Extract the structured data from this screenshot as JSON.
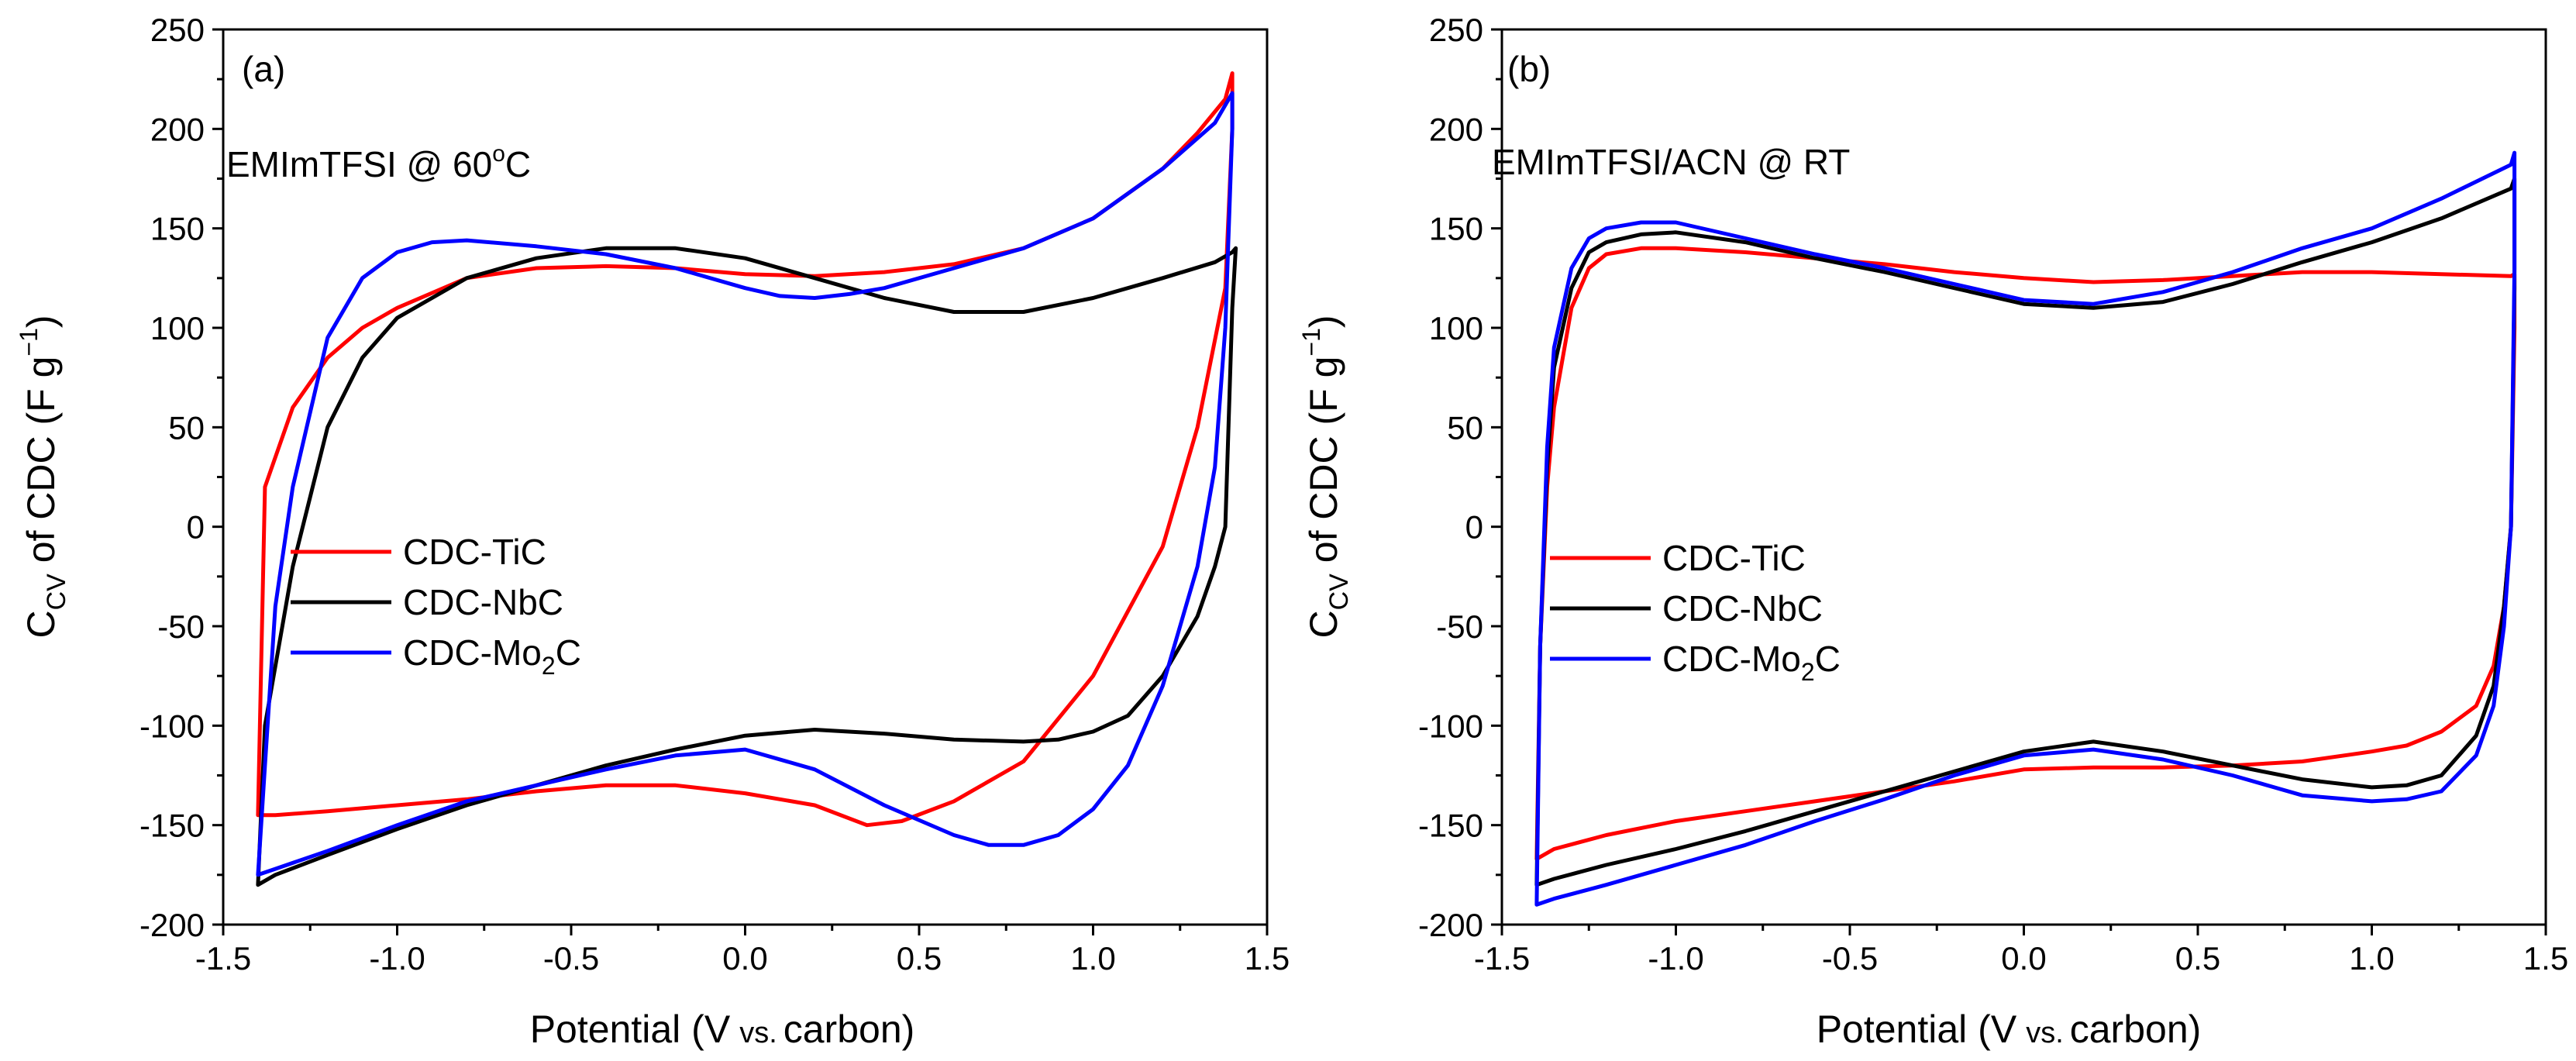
{
  "colors": {
    "CDC-TiC": "#ff0000",
    "CDC-NbC": "#000000",
    "CDC-Mo2C": "#0000ff"
  },
  "chart_data": [
    {
      "type": "line",
      "panel_label": "(a)",
      "annotation": "EMImTFSI @ 60",
      "annotation_sup": "o",
      "annotation_suffix": "C",
      "xlabel_main": "Potential (V",
      "xlabel_small": "vs.",
      "xlabel_end": "carbon)",
      "ylabel_c": "C",
      "ylabel_sub": "CV",
      "ylabel_mid": " of CDC (F g",
      "ylabel_sup": "−1",
      "ylabel_end": ")",
      "xlim": [
        -1.5,
        1.5
      ],
      "ylim": [
        -200,
        250
      ],
      "xticks": [
        "-1.5",
        "-1.0",
        "-0.5",
        "0.0",
        "0.5",
        "1.0",
        "1.5"
      ],
      "yticks": [
        "-200",
        "-150",
        "-100",
        "-50",
        "0",
        "50",
        "100",
        "150",
        "200",
        "250"
      ],
      "legend": {
        "position": "left",
        "entries": [
          "CDC-TiC",
          "CDC-NbC",
          "CDC-Mo2C"
        ]
      },
      "series": [
        {
          "name": "CDC-TiC",
          "x": [
            -1.4,
            -1.38,
            -1.3,
            -1.2,
            -1.1,
            -1.0,
            -0.8,
            -0.6,
            -0.4,
            -0.2,
            0.0,
            0.2,
            0.4,
            0.6,
            0.8,
            1.0,
            1.2,
            1.3,
            1.38,
            1.4,
            1.4,
            1.38,
            1.3,
            1.2,
            1.0,
            0.8,
            0.6,
            0.45,
            0.35,
            0.2,
            0.0,
            -0.2,
            -0.4,
            -0.6,
            -0.8,
            -1.0,
            -1.2,
            -1.35,
            -1.4,
            -1.4
          ],
          "y": [
            -145,
            20,
            60,
            85,
            100,
            110,
            125,
            130,
            131,
            130,
            127,
            126,
            128,
            132,
            140,
            155,
            180,
            198,
            215,
            228,
            200,
            120,
            50,
            -10,
            -75,
            -118,
            -138,
            -148,
            -150,
            -140,
            -134,
            -130,
            -130,
            -133,
            -137,
            -140,
            -143,
            -145,
            -145,
            -145
          ]
        },
        {
          "name": "CDC-NbC",
          "x": [
            -1.4,
            -1.38,
            -1.3,
            -1.2,
            -1.1,
            -1.0,
            -0.8,
            -0.6,
            -0.4,
            -0.2,
            0.0,
            0.2,
            0.4,
            0.6,
            0.8,
            1.0,
            1.2,
            1.35,
            1.4,
            1.41,
            1.4,
            1.38,
            1.35,
            1.3,
            1.2,
            1.1,
            1.0,
            0.9,
            0.8,
            0.6,
            0.4,
            0.2,
            0.0,
            -0.2,
            -0.4,
            -0.6,
            -0.8,
            -1.0,
            -1.2,
            -1.35,
            -1.4
          ],
          "y": [
            -180,
            -100,
            -20,
            50,
            85,
            105,
            125,
            135,
            140,
            140,
            135,
            125,
            115,
            108,
            108,
            115,
            125,
            133,
            138,
            140,
            110,
            0,
            -20,
            -45,
            -75,
            -95,
            -103,
            -107,
            -108,
            -107,
            -104,
            -102,
            -105,
            -112,
            -120,
            -130,
            -140,
            -152,
            -165,
            -175,
            -180
          ]
        },
        {
          "name": "CDC-Mo2C",
          "x": [
            -1.4,
            -1.38,
            -1.35,
            -1.3,
            -1.2,
            -1.1,
            -1.0,
            -0.9,
            -0.8,
            -0.6,
            -0.4,
            -0.2,
            0.0,
            0.1,
            0.2,
            0.3,
            0.4,
            0.6,
            0.8,
            1.0,
            1.2,
            1.35,
            1.4,
            1.4,
            1.38,
            1.35,
            1.3,
            1.2,
            1.1,
            1.0,
            0.9,
            0.8,
            0.7,
            0.6,
            0.4,
            0.2,
            0.0,
            -0.2,
            -0.4,
            -0.6,
            -0.8,
            -1.0,
            -1.2,
            -1.35,
            -1.4
          ],
          "y": [
            -175,
            -120,
            -40,
            20,
            95,
            125,
            138,
            143,
            144,
            141,
            137,
            130,
            120,
            116,
            115,
            117,
            120,
            130,
            140,
            155,
            180,
            203,
            218,
            200,
            100,
            30,
            -20,
            -80,
            -120,
            -142,
            -155,
            -160,
            -160,
            -155,
            -140,
            -122,
            -112,
            -115,
            -122,
            -130,
            -138,
            -150,
            -163,
            -172,
            -175
          ]
        }
      ]
    },
    {
      "type": "line",
      "panel_label": "(b)",
      "annotation": "EMImTFSI/ACN @ RT",
      "annotation_sup": "",
      "annotation_suffix": "",
      "xlabel_main": "Potential (V",
      "xlabel_small": "vs.",
      "xlabel_end": "carbon)",
      "ylabel_c": "C",
      "ylabel_sub": "CV",
      "ylabel_mid": " of CDC (F g",
      "ylabel_sup": "−1",
      "ylabel_end": ")",
      "xlim": [
        -1.5,
        1.5
      ],
      "ylim": [
        -200,
        250
      ],
      "xticks": [
        "-1.5",
        "-1.0",
        "-0.5",
        "0.0",
        "0.5",
        "1.0",
        "1.5"
      ],
      "yticks": [
        "-200",
        "-150",
        "-100",
        "-50",
        "0",
        "50",
        "100",
        "150",
        "200",
        "250"
      ],
      "legend": {
        "position": "left",
        "entries": [
          "CDC-TiC",
          "CDC-NbC",
          "CDC-Mo2C"
        ]
      },
      "series": [
        {
          "name": "CDC-TiC",
          "x": [
            -1.4,
            -1.39,
            -1.37,
            -1.35,
            -1.3,
            -1.25,
            -1.2,
            -1.1,
            -1.0,
            -0.8,
            -0.6,
            -0.4,
            -0.2,
            0.0,
            0.2,
            0.4,
            0.6,
            0.8,
            1.0,
            1.2,
            1.4,
            1.41,
            1.41,
            1.4,
            1.38,
            1.35,
            1.3,
            1.2,
            1.1,
            1.0,
            0.8,
            0.6,
            0.4,
            0.2,
            0.0,
            -0.2,
            -0.4,
            -0.6,
            -0.8,
            -1.0,
            -1.2,
            -1.35,
            -1.4
          ],
          "y": [
            -167,
            -60,
            20,
            60,
            110,
            130,
            137,
            140,
            140,
            138,
            135,
            132,
            128,
            125,
            123,
            124,
            126,
            128,
            128,
            127,
            126,
            127,
            100,
            0,
            -40,
            -70,
            -90,
            -103,
            -110,
            -113,
            -118,
            -120,
            -121,
            -121,
            -122,
            -128,
            -133,
            -138,
            -143,
            -148,
            -155,
            -162,
            -167
          ]
        },
        {
          "name": "CDC-NbC",
          "x": [
            -1.4,
            -1.39,
            -1.37,
            -1.35,
            -1.3,
            -1.25,
            -1.2,
            -1.1,
            -1.0,
            -0.8,
            -0.6,
            -0.4,
            -0.2,
            0.0,
            0.2,
            0.4,
            0.6,
            0.8,
            1.0,
            1.2,
            1.4,
            1.41,
            1.41,
            1.4,
            1.38,
            1.35,
            1.3,
            1.2,
            1.1,
            1.0,
            0.8,
            0.6,
            0.4,
            0.2,
            0.0,
            -0.2,
            -0.4,
            -0.6,
            -0.8,
            -1.0,
            -1.2,
            -1.35,
            -1.4
          ],
          "y": [
            -180,
            -60,
            30,
            80,
            120,
            138,
            143,
            147,
            148,
            143,
            135,
            128,
            120,
            112,
            110,
            113,
            122,
            133,
            143,
            155,
            170,
            175,
            120,
            0,
            -40,
            -80,
            -105,
            -125,
            -130,
            -131,
            -127,
            -120,
            -113,
            -108,
            -113,
            -123,
            -133,
            -143,
            -153,
            -162,
            -170,
            -177,
            -180
          ]
        },
        {
          "name": "CDC-Mo2C",
          "x": [
            -1.4,
            -1.39,
            -1.37,
            -1.35,
            -1.3,
            -1.25,
            -1.2,
            -1.1,
            -1.0,
            -0.8,
            -0.6,
            -0.4,
            -0.2,
            0.0,
            0.2,
            0.4,
            0.6,
            0.8,
            1.0,
            1.2,
            1.4,
            1.41,
            1.41,
            1.4,
            1.38,
            1.35,
            1.3,
            1.2,
            1.1,
            1.0,
            0.8,
            0.6,
            0.4,
            0.2,
            0.0,
            -0.2,
            -0.4,
            -0.6,
            -0.8,
            -1.0,
            -1.2,
            -1.35,
            -1.4
          ],
          "y": [
            -190,
            -60,
            40,
            90,
            130,
            145,
            150,
            153,
            153,
            145,
            137,
            130,
            122,
            114,
            112,
            118,
            128,
            140,
            150,
            165,
            182,
            188,
            130,
            0,
            -50,
            -90,
            -115,
            -133,
            -137,
            -138,
            -135,
            -125,
            -117,
            -112,
            -115,
            -125,
            -137,
            -148,
            -160,
            -170,
            -180,
            -187,
            -190
          ]
        }
      ]
    }
  ]
}
